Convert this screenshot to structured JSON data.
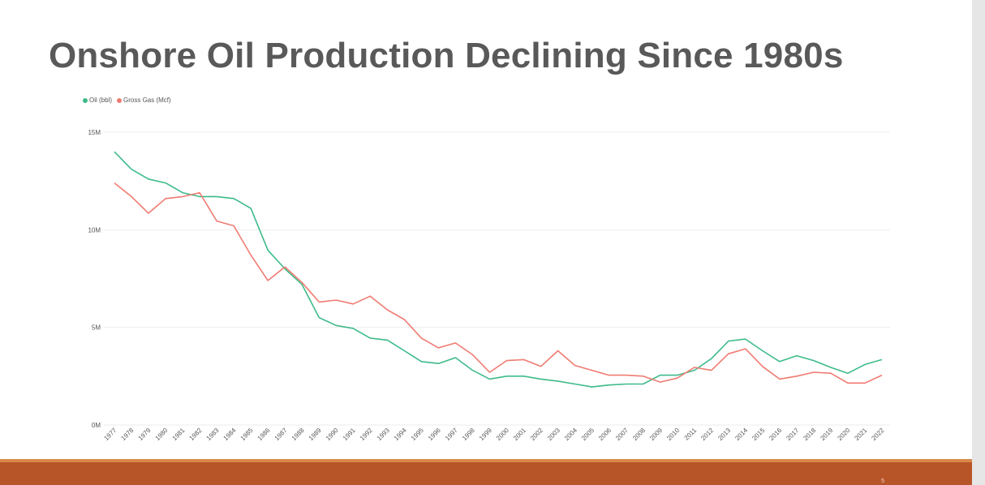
{
  "slide": {
    "title": "Onshore Oil Production Declining Since 1980s",
    "page_number": "5",
    "footer_color": "#b85528"
  },
  "chart_data": {
    "type": "line",
    "title": "",
    "xlabel": "",
    "ylabel": "",
    "ylim": [
      0,
      15000000
    ],
    "y_ticks": [
      {
        "value": 0,
        "label": "0M"
      },
      {
        "value": 5000000,
        "label": "5M"
      },
      {
        "value": 10000000,
        "label": "10M"
      },
      {
        "value": 15000000,
        "label": "15M"
      }
    ],
    "grid": "horizontal",
    "legend_position": "top-left",
    "x": [
      "1977",
      "1978",
      "1979",
      "1980",
      "1981",
      "1982",
      "1983",
      "1984",
      "1985",
      "1986",
      "1987",
      "1988",
      "1989",
      "1990",
      "1991",
      "1992",
      "1993",
      "1994",
      "1995",
      "1996",
      "1997",
      "1998",
      "1999",
      "2000",
      "2001",
      "2002",
      "2003",
      "2004",
      "2005",
      "2006",
      "2007",
      "2008",
      "2009",
      "2010",
      "2011",
      "2012",
      "2013",
      "2014",
      "2015",
      "2016",
      "2017",
      "2018",
      "2019",
      "2020",
      "2021",
      "2022"
    ],
    "series": [
      {
        "name": "Oil (bbl)",
        "color": "#3dbb8a",
        "values": [
          14000000,
          13100000,
          12600000,
          12400000,
          11900000,
          11700000,
          11700000,
          11600000,
          11100000,
          8950000,
          8000000,
          7200000,
          5500000,
          5100000,
          4950000,
          4450000,
          4350000,
          3800000,
          3250000,
          3150000,
          3450000,
          2800000,
          2350000,
          2500000,
          2500000,
          2350000,
          2250000,
          2100000,
          1950000,
          2050000,
          2100000,
          2100000,
          2550000,
          2550000,
          2800000,
          3400000,
          4300000,
          4400000,
          3800000,
          3250000,
          3550000,
          3300000,
          2950000,
          2650000,
          3100000,
          3350000
        ]
      },
      {
        "name": "Gross Gas (Mcf)",
        "color": "#ef7b72",
        "values": [
          12400000,
          11700000,
          10850000,
          11600000,
          11700000,
          11900000,
          10450000,
          10200000,
          8700000,
          7400000,
          8100000,
          7300000,
          6300000,
          6400000,
          6200000,
          6600000,
          5900000,
          5400000,
          4450000,
          3950000,
          4200000,
          3600000,
          2700000,
          3300000,
          3350000,
          3000000,
          3800000,
          3050000,
          2800000,
          2550000,
          2550000,
          2500000,
          2200000,
          2400000,
          2950000,
          2800000,
          3650000,
          3900000,
          3000000,
          2350000,
          2500000,
          2700000,
          2650000,
          2150000,
          2150000,
          2550000
        ]
      }
    ]
  }
}
